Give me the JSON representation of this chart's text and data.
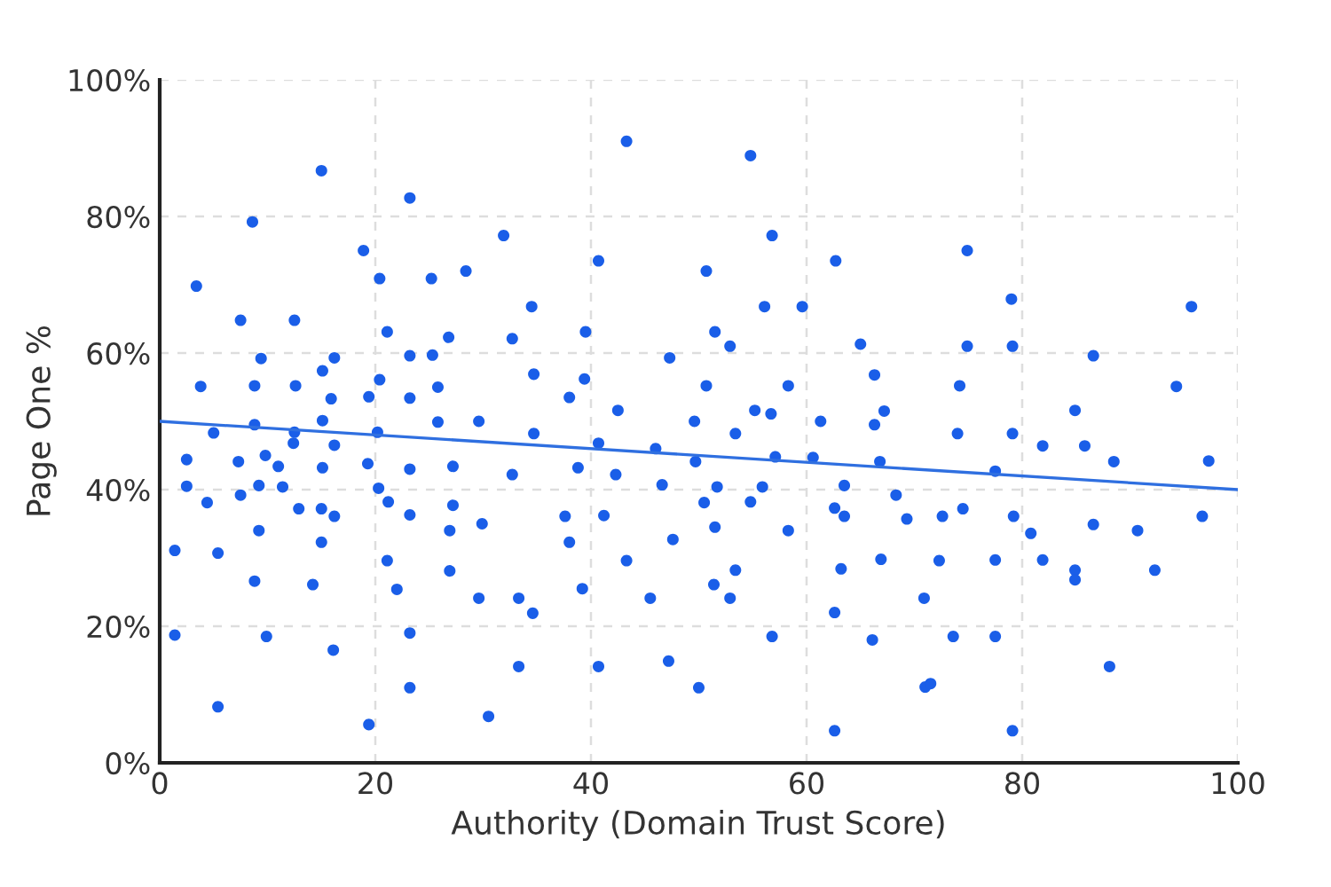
{
  "chart_data": {
    "type": "scatter",
    "xlabel": "Authority (Domain Trust Score)",
    "ylabel": "Page One %",
    "xlim": [
      0,
      100
    ],
    "xticks": [
      0,
      20,
      40,
      60,
      80,
      100
    ],
    "ylim": [
      0,
      100
    ],
    "yticks": [
      {
        "value": 0,
        "label": "0%"
      },
      {
        "value": 20,
        "label": "20%"
      },
      {
        "value": 40,
        "label": "40%"
      },
      {
        "value": 60,
        "label": "60%"
      },
      {
        "value": 80,
        "label": "80%"
      },
      {
        "value": 100,
        "label": "100%"
      }
    ],
    "grid": true,
    "series": [
      {
        "marker": "circle",
        "color": "#1a5ee8",
        "x": [
          15.0,
          23.2,
          8.6,
          18.9,
          20.4,
          25.2,
          28.4,
          31.9,
          3.4,
          7.5,
          12.5,
          21.1,
          26.8,
          32.7,
          9.4,
          16.2,
          23.2,
          25.3,
          3.8,
          8.8,
          12.6,
          15.1,
          20.4,
          15.9,
          19.4,
          23.2,
          25.8,
          8.8,
          15.1,
          25.8,
          29.6,
          5.0,
          12.5,
          20.2,
          12.4,
          16.2,
          2.5,
          7.3,
          9.8,
          11.0,
          15.1,
          19.3,
          23.2,
          27.2,
          32.7,
          2.5,
          9.2,
          11.4,
          20.3,
          4.4,
          7.5,
          12.9,
          15.0,
          16.2,
          21.2,
          23.2,
          27.2,
          26.9,
          29.9,
          9.2,
          15.0,
          1.4,
          5.4,
          21.1,
          26.9,
          8.8,
          14.2,
          22.0,
          29.6,
          33.3,
          1.4,
          9.9,
          23.2,
          16.1,
          33.3,
          5.4,
          23.2,
          30.5,
          19.4,
          43.3,
          54.8,
          56.8,
          40.7,
          62.7,
          50.7,
          34.5,
          56.1,
          59.6,
          39.5,
          51.5,
          52.9,
          65.0,
          47.3,
          34.7,
          39.4,
          50.7,
          58.3,
          66.3,
          38.0,
          42.5,
          55.2,
          56.7,
          49.6,
          61.3,
          66.3,
          67.2,
          34.7,
          53.4,
          40.7,
          46.0,
          49.7,
          57.1,
          60.6,
          66.8,
          38.8,
          42.3,
          46.6,
          51.7,
          55.9,
          63.5,
          50.5,
          54.8,
          62.6,
          37.6,
          41.2,
          63.5,
          51.5,
          58.3,
          38.0,
          47.6,
          43.3,
          53.4,
          63.2,
          66.9,
          39.2,
          51.4,
          52.9,
          45.5,
          34.6,
          62.6,
          56.8,
          66.1,
          40.7,
          47.2,
          50.0,
          62.6,
          74.9,
          79.0,
          95.7,
          74.9,
          79.1,
          86.6,
          74.2,
          94.3,
          84.9,
          74.0,
          79.1,
          81.9,
          85.8,
          88.5,
          97.3,
          77.5,
          68.3,
          69.3,
          72.6,
          74.5,
          79.2,
          80.8,
          86.6,
          90.7,
          96.7,
          72.3,
          77.5,
          81.9,
          84.9,
          84.9,
          92.3,
          70.9,
          73.6,
          77.5,
          88.1,
          71.0,
          71.5,
          79.1
        ],
        "values": [
          86.7,
          82.7,
          79.2,
          75.0,
          70.9,
          70.9,
          72.0,
          77.2,
          69.8,
          64.8,
          64.8,
          63.1,
          62.3,
          62.1,
          59.2,
          59.3,
          59.6,
          59.7,
          55.1,
          55.2,
          55.2,
          57.4,
          56.1,
          53.3,
          53.6,
          53.4,
          55.0,
          49.5,
          50.1,
          49.9,
          50.0,
          48.3,
          48.4,
          48.4,
          46.8,
          46.5,
          44.4,
          44.1,
          45.0,
          43.4,
          43.2,
          43.8,
          43.0,
          43.4,
          42.2,
          40.5,
          40.6,
          40.4,
          40.2,
          38.1,
          39.2,
          37.2,
          37.2,
          36.1,
          38.2,
          36.3,
          37.7,
          34.0,
          35.0,
          34.0,
          32.3,
          31.1,
          30.7,
          29.6,
          28.1,
          26.6,
          26.1,
          25.4,
          24.1,
          24.1,
          18.7,
          18.5,
          19.0,
          16.5,
          14.1,
          8.2,
          11.0,
          6.8,
          5.6,
          91.0,
          88.9,
          77.2,
          73.5,
          73.5,
          72.0,
          66.8,
          66.8,
          66.8,
          63.1,
          63.1,
          61.0,
          61.3,
          59.3,
          56.9,
          56.2,
          55.2,
          55.2,
          56.8,
          53.5,
          51.6,
          51.6,
          51.1,
          50.0,
          50.0,
          49.5,
          51.5,
          48.2,
          48.2,
          46.8,
          46.0,
          44.1,
          44.8,
          44.7,
          44.1,
          43.2,
          42.2,
          40.7,
          40.4,
          40.4,
          40.6,
          38.1,
          38.2,
          37.3,
          36.1,
          36.2,
          36.1,
          34.5,
          34.0,
          32.3,
          32.7,
          29.6,
          28.2,
          28.4,
          29.8,
          25.5,
          26.1,
          24.1,
          24.1,
          21.9,
          22.0,
          18.5,
          18.0,
          14.1,
          14.9,
          11.0,
          4.7,
          75.0,
          67.9,
          66.8,
          61.0,
          61.0,
          59.6,
          55.2,
          55.1,
          51.6,
          48.2,
          48.2,
          46.4,
          46.4,
          44.1,
          44.2,
          42.7,
          39.2,
          35.7,
          36.1,
          37.2,
          36.1,
          33.6,
          34.9,
          34.0,
          36.1,
          29.6,
          29.7,
          29.7,
          28.2,
          26.8,
          28.2,
          24.1,
          18.5,
          18.5,
          14.1,
          11.1,
          11.6,
          4.7
        ]
      },
      {
        "type": "line",
        "color": "#2f6fe0",
        "x": [
          0,
          100
        ],
        "values": [
          50,
          40
        ]
      }
    ]
  }
}
